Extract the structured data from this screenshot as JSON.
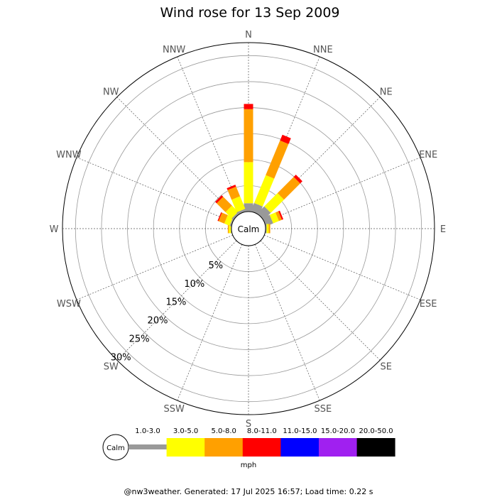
{
  "chart_data": {
    "type": "wind-rose",
    "title": "Wind rose for 13 Sep 2009",
    "directions": [
      "N",
      "NNE",
      "NE",
      "ENE",
      "E",
      "ESE",
      "SE",
      "SSE",
      "S",
      "SSW",
      "SW",
      "WSW",
      "W",
      "WNW",
      "NW",
      "NNW"
    ],
    "radial_labels": [
      "5%",
      "10%",
      "15%",
      "20%",
      "25%",
      "30%"
    ],
    "radial_values": [
      5,
      10,
      15,
      20,
      25,
      30
    ],
    "r_max": 32.5,
    "calm_label": "Calm",
    "speed_bins": [
      {
        "label": "1.0-3.0",
        "color": "#999999"
      },
      {
        "label": "3.0-5.0",
        "color": "#ffff00"
      },
      {
        "label": "5.0-8.0",
        "color": "#ffa000"
      },
      {
        "label": "8.0-11.0",
        "color": "#ff0000"
      },
      {
        "label": "11.0-15.0",
        "color": "#0000ff"
      },
      {
        "label": "15.0-20.0",
        "color": "#a020f0"
      },
      {
        "label": "20.0-50.0",
        "color": "#000000"
      }
    ],
    "unit": "mph",
    "series": [
      {
        "direction": "N",
        "values": [
          1.6,
          7.9,
          10.2,
          1.0,
          0,
          0,
          0
        ]
      },
      {
        "direction": "NNE",
        "values": [
          1.7,
          5.8,
          7.2,
          1.2,
          0,
          0,
          0
        ]
      },
      {
        "direction": "NE",
        "values": [
          1.9,
          3.6,
          4.4,
          0.6,
          0,
          0,
          0
        ]
      },
      {
        "direction": "ENE",
        "values": [
          1.5,
          1.2,
          0.6,
          0.3,
          0,
          0,
          0
        ]
      },
      {
        "direction": "E",
        "values": [
          0.2,
          0.4,
          0.3,
          0,
          0,
          0,
          0
        ]
      },
      {
        "direction": "ESE",
        "values": [
          0,
          0,
          0,
          0,
          0,
          0,
          0
        ]
      },
      {
        "direction": "SE",
        "values": [
          0,
          0,
          0,
          0,
          0,
          0,
          0
        ]
      },
      {
        "direction": "SSE",
        "values": [
          0,
          0,
          0,
          0,
          0,
          0,
          0
        ]
      },
      {
        "direction": "S",
        "values": [
          0,
          0,
          0,
          0,
          0,
          0,
          0
        ]
      },
      {
        "direction": "SSW",
        "values": [
          0,
          0,
          0,
          0,
          0,
          0,
          0
        ]
      },
      {
        "direction": "SW",
        "values": [
          0,
          0,
          0,
          0,
          0,
          0,
          0
        ]
      },
      {
        "direction": "WSW",
        "values": [
          0,
          0,
          0,
          0,
          0,
          0,
          0
        ]
      },
      {
        "direction": "W",
        "values": [
          0.1,
          0.4,
          0.2,
          0,
          0,
          0,
          0
        ]
      },
      {
        "direction": "WNW",
        "values": [
          0.3,
          1.1,
          1.2,
          0.2,
          0,
          0,
          0
        ]
      },
      {
        "direction": "NW",
        "values": [
          0.4,
          1.7,
          2.4,
          0.4,
          0,
          0,
          0
        ]
      },
      {
        "direction": "NNW",
        "values": [
          0.5,
          2.6,
          2.0,
          0.4,
          0,
          0,
          0
        ]
      }
    ]
  },
  "footer": "@nw3weather. Generated: 17 Jul 2025 16:57; Load time: 0.22 s"
}
